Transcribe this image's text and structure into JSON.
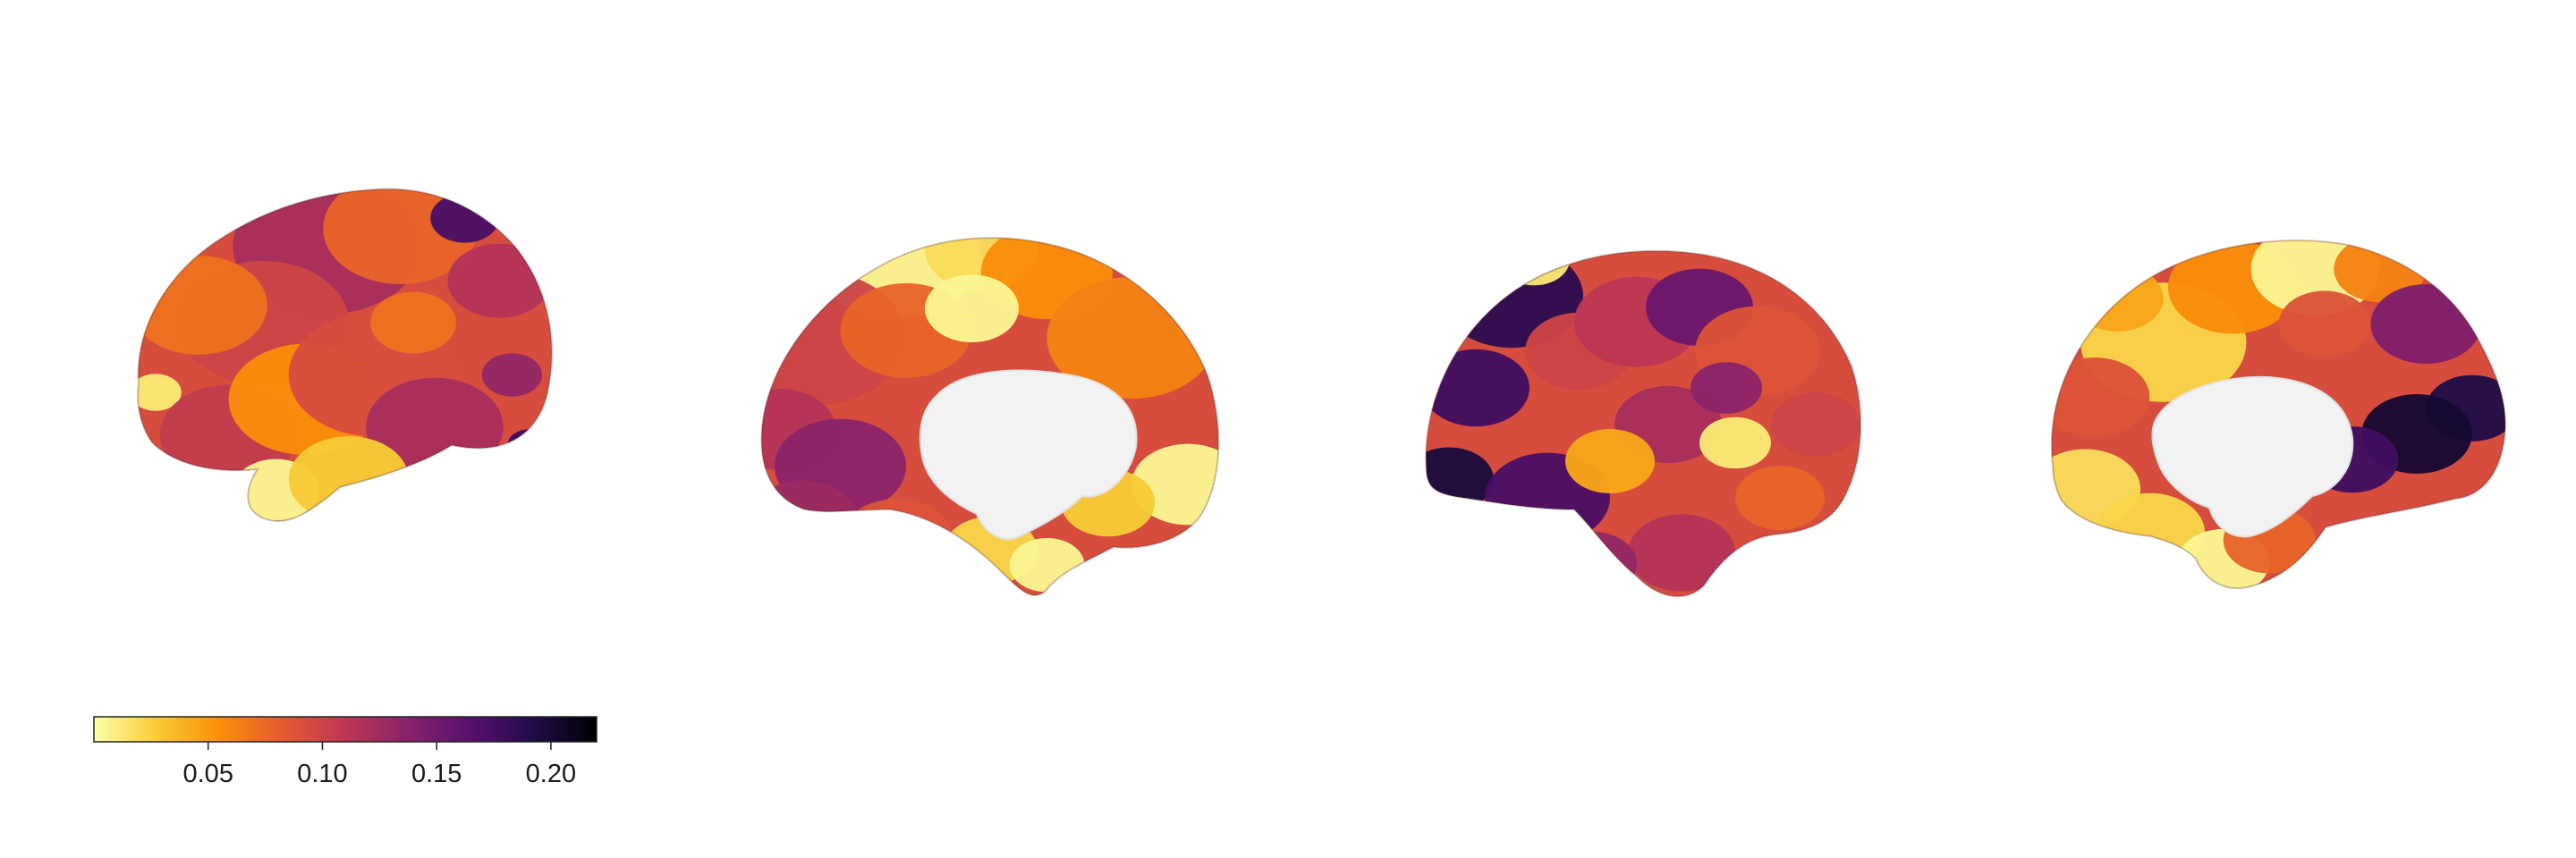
{
  "figure": {
    "views": [
      {
        "name": "left-hemisphere-lateral-view"
      },
      {
        "name": "left-hemisphere-medial-view"
      },
      {
        "name": "right-hemisphere-lateral-view"
      },
      {
        "name": "right-hemisphere-medial-view"
      }
    ],
    "background": "#ffffff",
    "medial_wall_color": "#f2f2f2"
  },
  "colorbar": {
    "colormap": "inferno (reversed)",
    "range": [
      0.0,
      0.22
    ],
    "ticks": [
      0.05,
      0.1,
      0.15,
      0.2
    ],
    "tick_labels": [
      "0.05",
      "0.10",
      "0.15",
      "0.20"
    ],
    "colors": [
      "#fcffa4",
      "#f8c932",
      "#f98e09",
      "#e45a31",
      "#bc3754",
      "#89226a",
      "#57106e",
      "#210c4a",
      "#000004"
    ]
  }
}
